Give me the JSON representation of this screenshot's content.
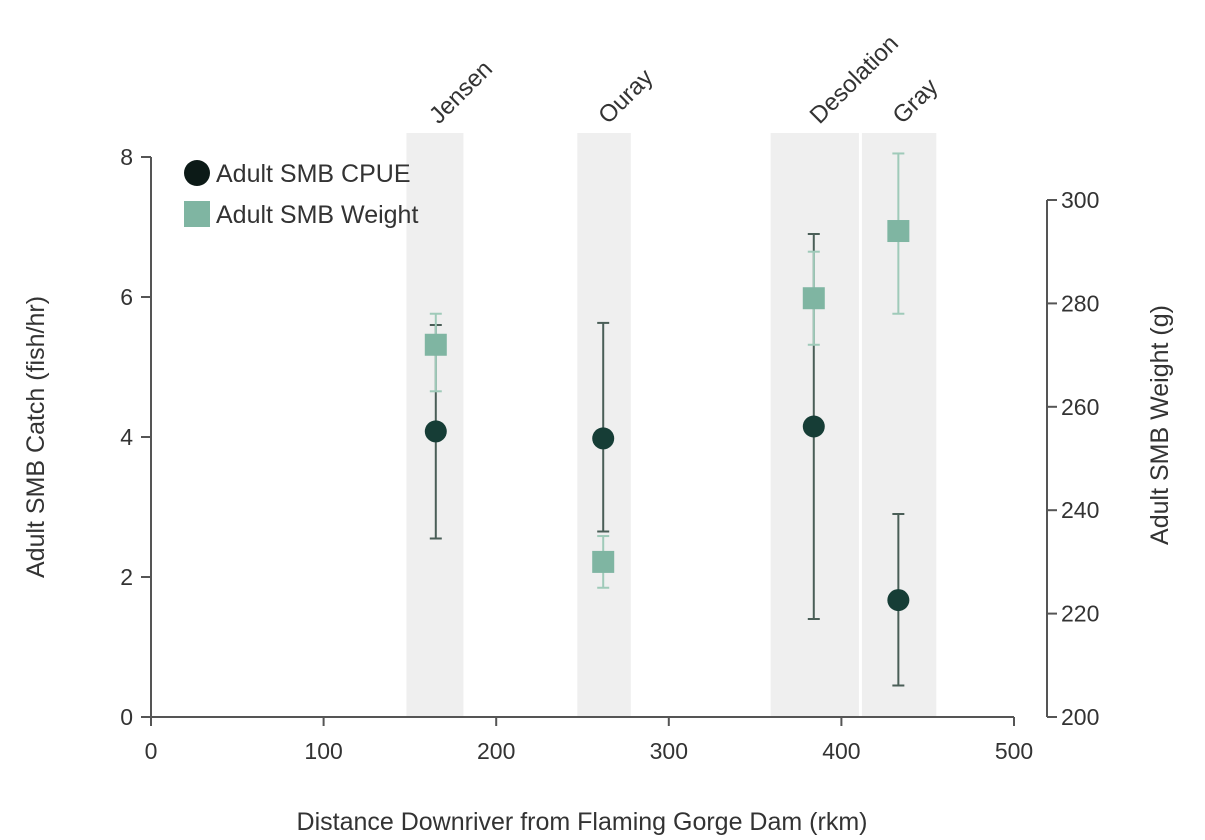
{
  "chart_data": {
    "type": "scatter",
    "xlabel": "Distance Downriver from Flaming Gorge Dam (rkm)",
    "ylabel_left": "Adult SMB Catch (fish/hr)",
    "ylabel_right": "Adult SMB Weight (g)",
    "xlim": [
      0,
      500
    ],
    "ylim_left": [
      0,
      8
    ],
    "ylim_right": [
      200,
      310
    ],
    "x_ticks": [
      0,
      100,
      200,
      300,
      400,
      500
    ],
    "y_left_ticks": [
      0,
      2,
      4,
      6,
      8
    ],
    "y_right_ticks": [
      200,
      220,
      240,
      260,
      280,
      300
    ],
    "legend_position": "top-left",
    "regions": [
      {
        "label": "Jensen",
        "x_start": 148,
        "x_end": 181
      },
      {
        "label": "Ouray",
        "x_start": 247,
        "x_end": 278
      },
      {
        "label": "Desolation",
        "x_start": 359,
        "x_end": 411
      },
      {
        "label": "Gray",
        "x_start": 411,
        "x_end": 455
      }
    ],
    "series": [
      {
        "name": "Adult SMB CPUE",
        "axis": "left",
        "marker": "circle",
        "color": "#163d36",
        "errorbar_color": "#4a5e57",
        "points": [
          {
            "x": 165,
            "y": 4.08,
            "err_low": 2.55,
            "err_high": 5.6
          },
          {
            "x": 262,
            "y": 3.98,
            "err_low": 2.65,
            "err_high": 5.63
          },
          {
            "x": 384,
            "y": 4.15,
            "err_low": 1.4,
            "err_high": 6.9
          },
          {
            "x": 433,
            "y": 1.67,
            "err_low": 0.45,
            "err_high": 2.9
          }
        ]
      },
      {
        "name": "Adult SMB Weight",
        "axis": "right",
        "marker": "square",
        "color": "#7fb5a2",
        "errorbar_color": "#9fcab9",
        "points": [
          {
            "x": 165,
            "y": 272,
            "err_low": 263,
            "err_high": 278
          },
          {
            "x": 262,
            "y": 230,
            "err_low": 225,
            "err_high": 235
          },
          {
            "x": 384,
            "y": 281,
            "err_low": 272,
            "err_high": 290
          },
          {
            "x": 433,
            "y": 294,
            "err_low": 278,
            "err_high": 309
          }
        ]
      }
    ]
  }
}
